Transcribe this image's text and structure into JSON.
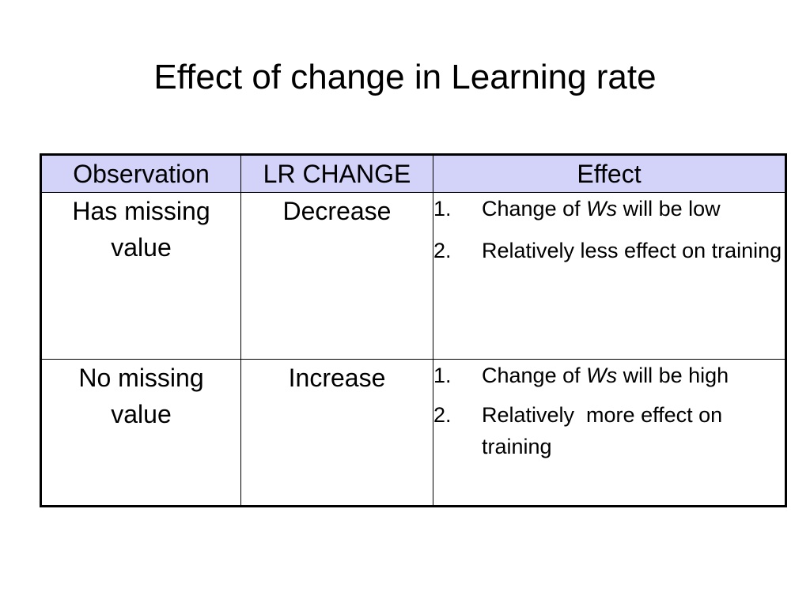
{
  "slide": {
    "title": "Effect of change in Learning rate"
  },
  "table": {
    "headers": [
      "Observation",
      "LR CHANGE",
      "Effect"
    ],
    "rows": [
      {
        "observation": "Has missing value",
        "lr_change": "Decrease",
        "effects": [
          {
            "num": "1.",
            "prefix": "Change of ",
            "italic": "Ws",
            "suffix": " will be low"
          },
          {
            "num": "2.",
            "text": "Relatively less effect on training"
          }
        ]
      },
      {
        "observation": "No missing value",
        "lr_change": "Increase",
        "effects": [
          {
            "num": "1.",
            "prefix": "Change of ",
            "italic": "Ws",
            "suffix": " will be high"
          },
          {
            "num": "2.",
            "text": "Relatively  more effect on training"
          }
        ]
      }
    ]
  }
}
